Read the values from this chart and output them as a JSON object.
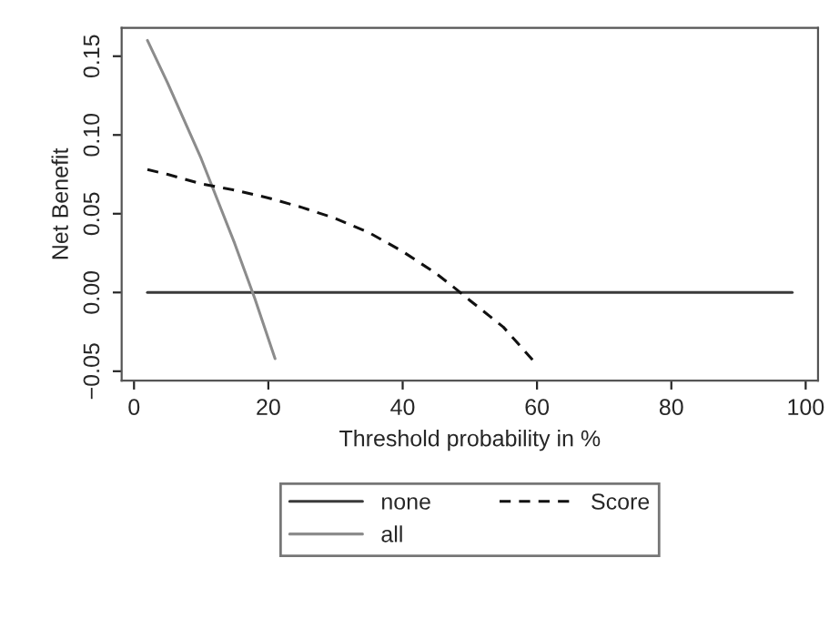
{
  "chart_data": {
    "type": "line",
    "xlabel": "Threshold probability in %",
    "ylabel": "Net Benefit",
    "xlim": [
      -1.84,
      101.84
    ],
    "ylim": [
      -0.056,
      0.168
    ],
    "xticks": [
      0,
      20,
      40,
      60,
      80,
      100
    ],
    "yticks": [
      {
        "value": -0.05,
        "label": "−0.05"
      },
      {
        "value": 0,
        "label": "0.00"
      },
      0.05,
      {
        "value": 0.1,
        "label": "0.10"
      },
      0.15
    ],
    "grid": false,
    "legend": "bottom",
    "marker": "none",
    "series": [
      {
        "name": "none",
        "color": "#3a3a3a",
        "line_style": "solid",
        "x": [
          2,
          98
        ],
        "values": [
          0,
          0
        ]
      },
      {
        "name": "all",
        "color": "#8c8c8c",
        "line_style": "solid",
        "x": [
          2,
          5,
          10,
          15,
          18,
          21
        ],
        "values": [
          0.16,
          0.133,
          0.085,
          0.031,
          -0.004,
          -0.042
        ]
      },
      {
        "name": "Score",
        "color": "#111111",
        "line_style": "dashed",
        "x": [
          2,
          5,
          10,
          15,
          20,
          25,
          30,
          35,
          40,
          45,
          48,
          50,
          55,
          60
        ],
        "values": [
          0.078,
          0.075,
          0.069,
          0.065,
          0.06,
          0.054,
          0.047,
          0.038,
          0.026,
          0.012,
          0.002,
          -0.005,
          -0.022,
          -0.046
        ]
      }
    ]
  }
}
